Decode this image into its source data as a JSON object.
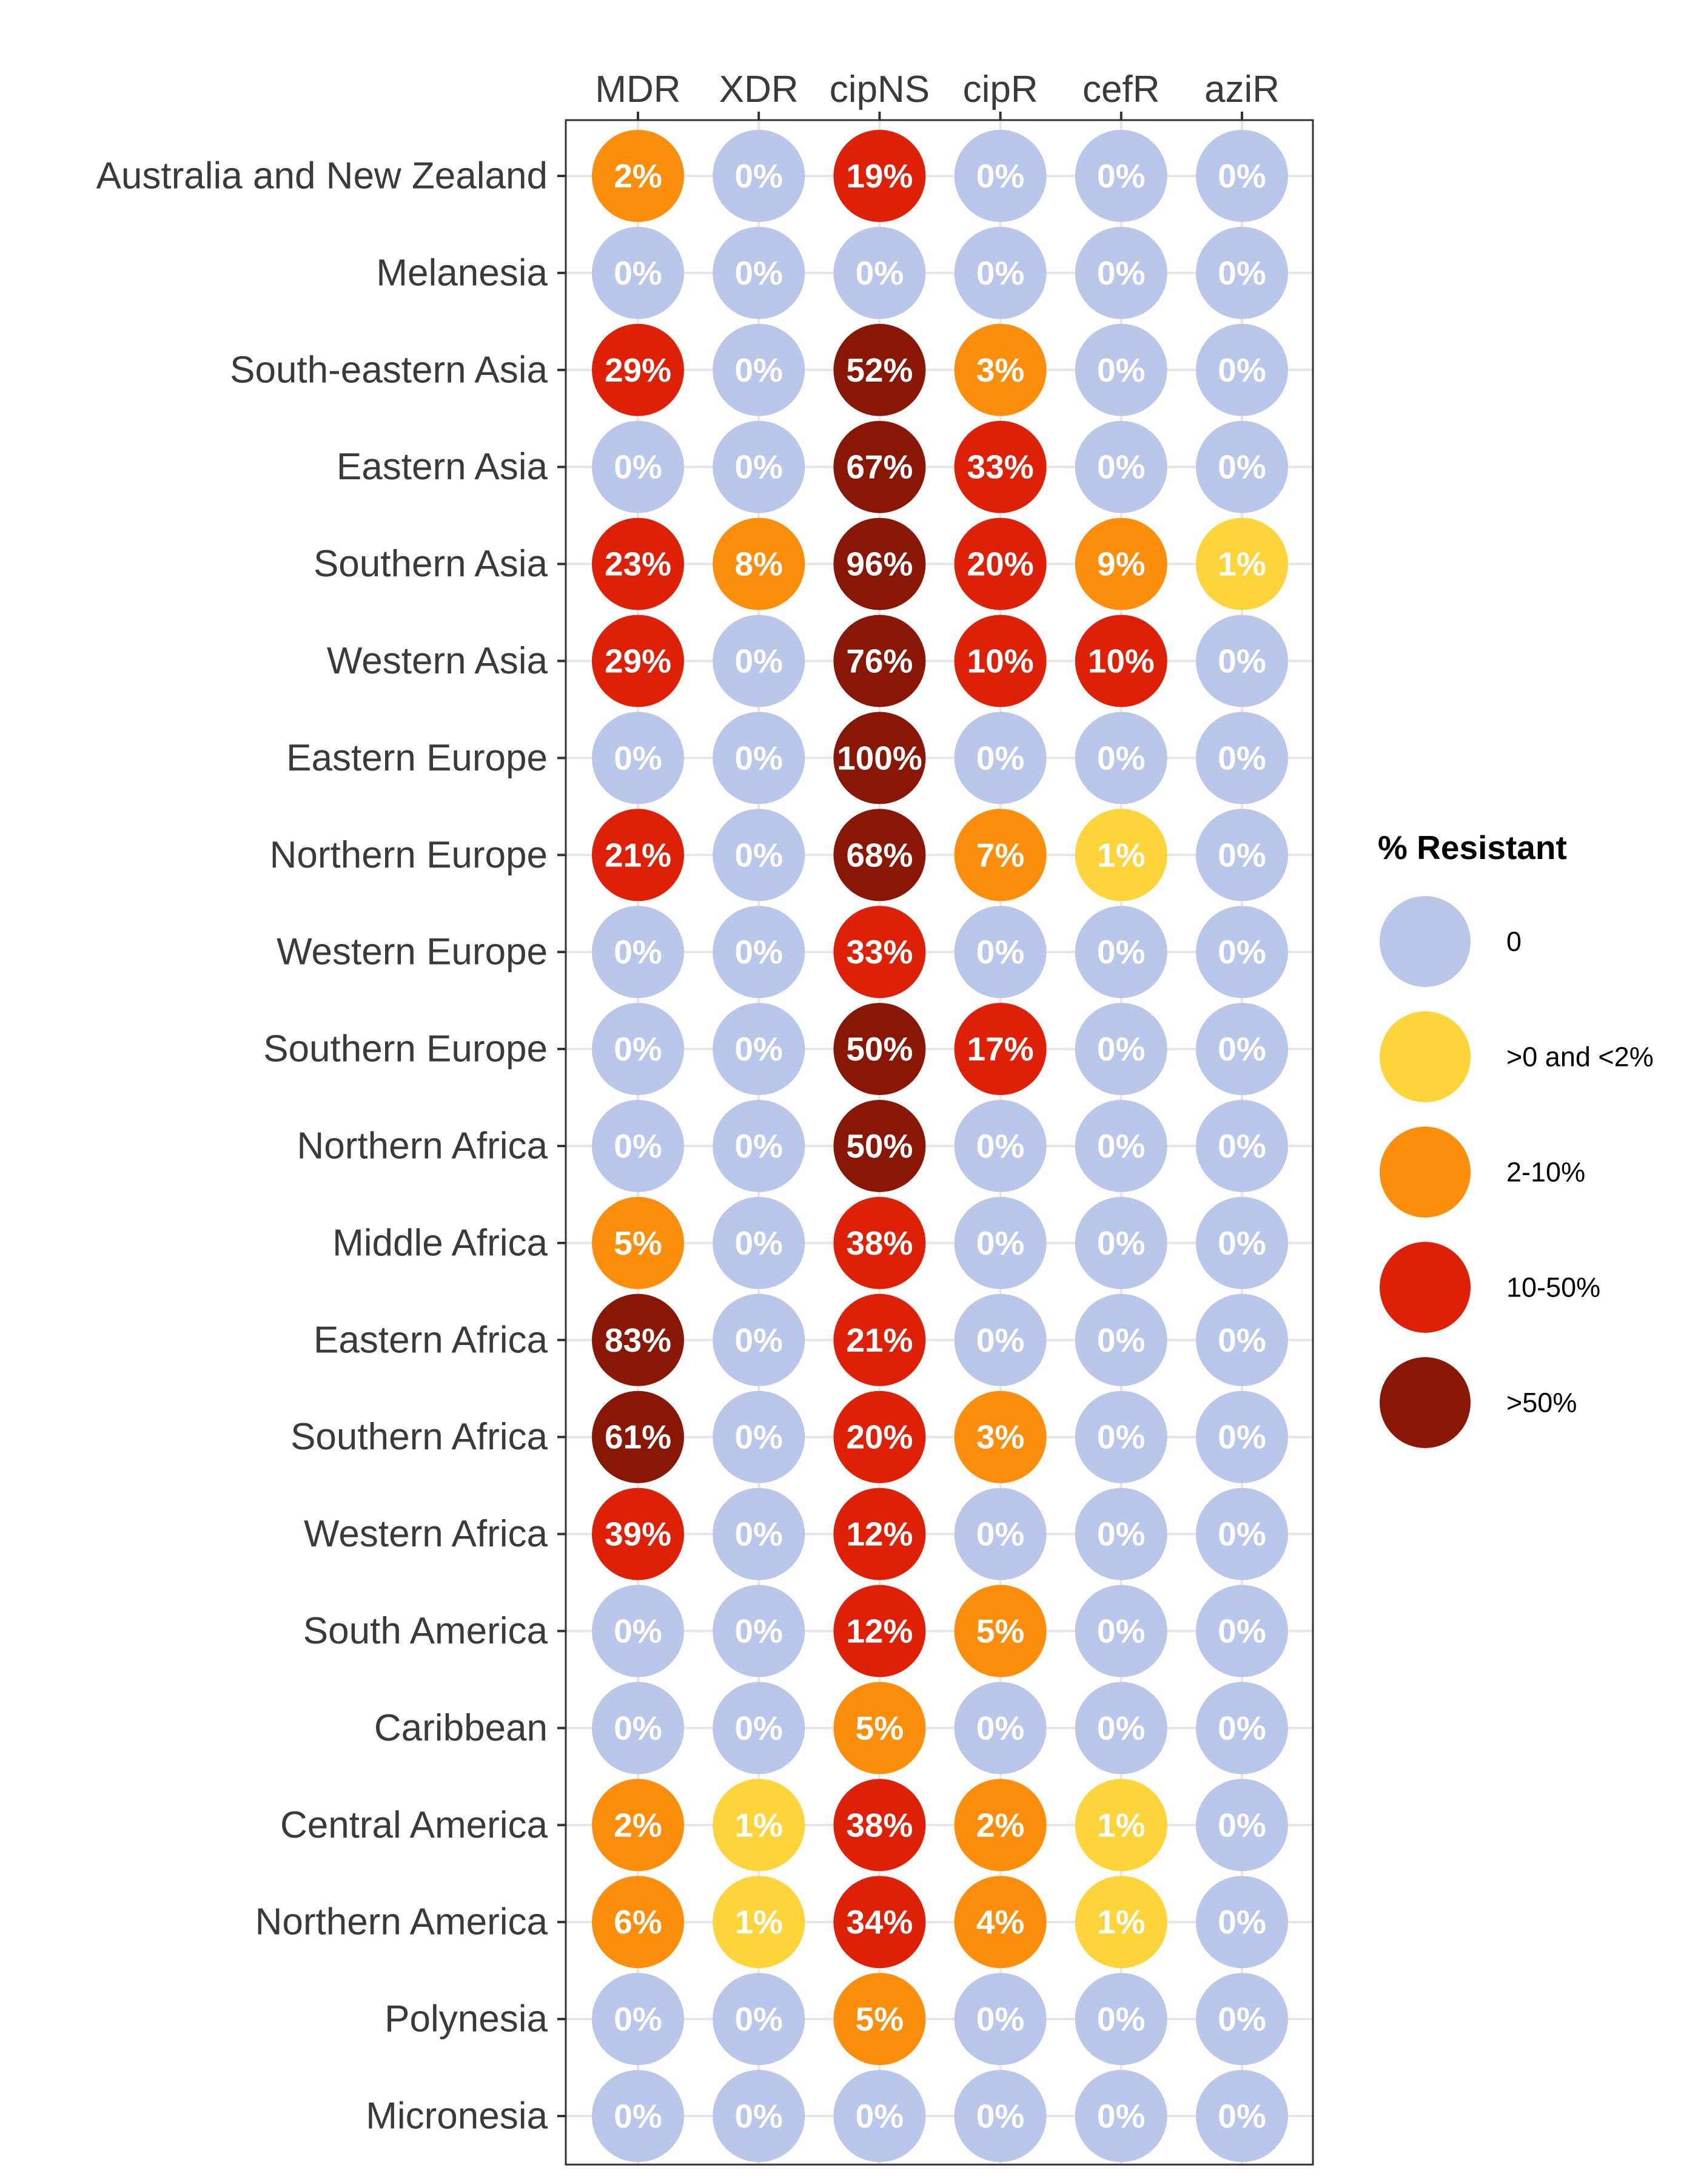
{
  "chart_data": {
    "type": "heatmap",
    "columns": [
      "MDR",
      "XDR",
      "cipNS",
      "cipR",
      "cefR",
      "aziR"
    ],
    "rows": [
      "Australia and New Zealand",
      "Melanesia",
      "South-eastern Asia",
      "Eastern Asia",
      "Southern Asia",
      "Western Asia",
      "Eastern Europe",
      "Northern Europe",
      "Western Europe",
      "Southern Europe",
      "Northern Africa",
      "Middle Africa",
      "Eastern Africa",
      "Southern Africa",
      "Western Africa",
      "South America",
      "Caribbean",
      "Central America",
      "Northern America",
      "Polynesia",
      "Micronesia"
    ],
    "values": [
      [
        2,
        0,
        19,
        0,
        0,
        0
      ],
      [
        0,
        0,
        0,
        0,
        0,
        0
      ],
      [
        29,
        0,
        52,
        3,
        0,
        0
      ],
      [
        0,
        0,
        67,
        33,
        0,
        0
      ],
      [
        23,
        8,
        96,
        20,
        9,
        1
      ],
      [
        29,
        0,
        76,
        10,
        10,
        0
      ],
      [
        0,
        0,
        100,
        0,
        0,
        0
      ],
      [
        21,
        0,
        68,
        7,
        1,
        0
      ],
      [
        0,
        0,
        33,
        0,
        0,
        0
      ],
      [
        0,
        0,
        50,
        17,
        0,
        0
      ],
      [
        0,
        0,
        50,
        0,
        0,
        0
      ],
      [
        5,
        0,
        38,
        0,
        0,
        0
      ],
      [
        83,
        0,
        21,
        0,
        0,
        0
      ],
      [
        61,
        0,
        20,
        3,
        0,
        0
      ],
      [
        39,
        0,
        12,
        0,
        0,
        0
      ],
      [
        0,
        0,
        12,
        5,
        0,
        0
      ],
      [
        0,
        0,
        5,
        0,
        0,
        0
      ],
      [
        2,
        1,
        38,
        2,
        1,
        0
      ],
      [
        6,
        1,
        34,
        4,
        1,
        0
      ],
      [
        0,
        0,
        5,
        0,
        0,
        0
      ],
      [
        0,
        0,
        0,
        0,
        0,
        0
      ]
    ],
    "categories_matrix": [
      [
        2,
        0,
        3,
        0,
        0,
        0
      ],
      [
        0,
        0,
        0,
        0,
        0,
        0
      ],
      [
        3,
        0,
        4,
        2,
        0,
        0
      ],
      [
        0,
        0,
        4,
        3,
        0,
        0
      ],
      [
        3,
        2,
        4,
        3,
        2,
        1
      ],
      [
        3,
        0,
        4,
        3,
        3,
        0
      ],
      [
        0,
        0,
        4,
        0,
        0,
        0
      ],
      [
        3,
        0,
        4,
        2,
        1,
        0
      ],
      [
        0,
        0,
        3,
        0,
        0,
        0
      ],
      [
        0,
        0,
        4,
        3,
        0,
        0
      ],
      [
        0,
        0,
        4,
        0,
        0,
        0
      ],
      [
        2,
        0,
        3,
        0,
        0,
        0
      ],
      [
        4,
        0,
        3,
        0,
        0,
        0
      ],
      [
        4,
        0,
        3,
        2,
        0,
        0
      ],
      [
        3,
        0,
        3,
        0,
        0,
        0
      ],
      [
        0,
        0,
        3,
        2,
        0,
        0
      ],
      [
        0,
        0,
        2,
        0,
        0,
        0
      ],
      [
        2,
        1,
        3,
        2,
        1,
        0
      ],
      [
        2,
        1,
        3,
        2,
        1,
        0
      ],
      [
        0,
        0,
        2,
        0,
        0,
        0
      ],
      [
        0,
        0,
        0,
        0,
        0,
        0
      ]
    ],
    "value_suffix": "%",
    "legend": {
      "title": "% Resistant",
      "position": "right",
      "entries": [
        {
          "label": "0",
          "color": "#b8c7ea"
        },
        {
          "label": ">0 and <2%",
          "color": "#fdd43a"
        },
        {
          "label": "2-10%",
          "color": "#fd8e0b"
        },
        {
          "label": "10-50%",
          "color": "#de2007"
        },
        {
          "label": ">50%",
          "color": "#881705"
        }
      ]
    },
    "grid": true,
    "x_axis_position": "top"
  }
}
